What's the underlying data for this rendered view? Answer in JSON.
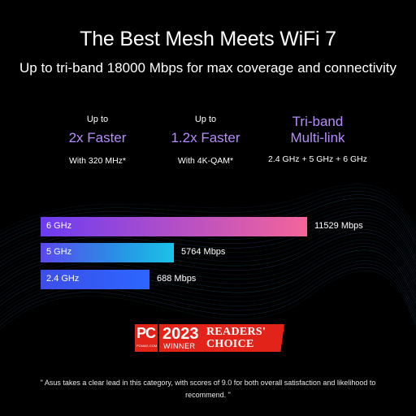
{
  "headline": {
    "title": "The Best Mesh Meets WiFi 7",
    "subtitle": "Up to tri-band 18000 Mbps for max coverage and connectivity"
  },
  "stats": [
    {
      "top": "Up to",
      "main": "2x Faster",
      "sub": "With 320 MHz*"
    },
    {
      "top": "Up to",
      "main": "1.2x Faster",
      "sub": "With 4K-QAM*"
    },
    {
      "main": "Tri-band",
      "main2": "Multi-link",
      "sub": "2.4 GHz + 5 GHz + 6 GHz"
    }
  ],
  "bars": [
    {
      "band": "6 GHz",
      "value": 11529,
      "value_label": "11529 Mbps"
    },
    {
      "band": "5 GHz",
      "value": 5764,
      "value_label": "5764 Mbps"
    },
    {
      "band": "2.4 GHz",
      "value": 688,
      "value_label": "688 Mbps"
    }
  ],
  "award": {
    "logo": "PC",
    "logo_sub": "PCMAG.COM",
    "year": "2023",
    "winner": "WINNER",
    "readers": "READERS'",
    "choice": "CHOICE"
  },
  "quote": "\" Asus takes a clear lead in this category, with scores of 9.0 for both overall satisfaction and likelihood to recommend. \"",
  "colors": {
    "accent": "#b78cff",
    "background": "#000000",
    "award_red": "#e2231a"
  }
}
